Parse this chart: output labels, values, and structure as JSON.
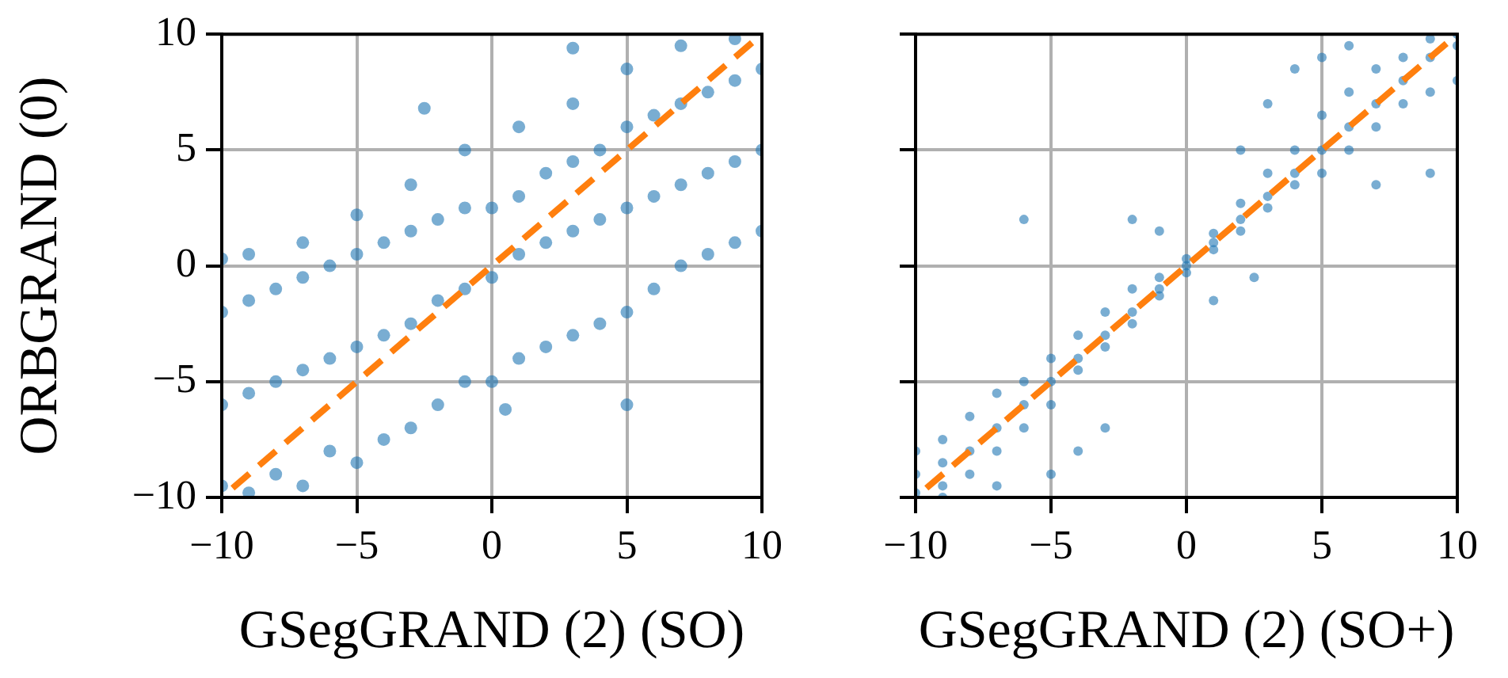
{
  "chart_data": [
    {
      "type": "scatter",
      "xlabel": "GSegGRAND (2) (SO)",
      "ylabel": "ORBGRAND (0)",
      "xlim": [
        -10,
        10
      ],
      "ylim": [
        -10,
        10
      ],
      "xticks": [
        -10,
        -5,
        0,
        5,
        10
      ],
      "yticks": [
        -10,
        -5,
        0,
        5,
        10
      ],
      "grid": true,
      "series": [
        {
          "color": "#1f77b4",
          "marker": "circle",
          "x": [
            -10,
            -10,
            -10,
            -10,
            -9,
            -9,
            -9,
            -9,
            -8,
            -8,
            -8,
            -7,
            -7,
            -7,
            -7,
            -6,
            -6,
            -6,
            -5,
            -5,
            -5,
            -5,
            -4,
            -4,
            -4,
            -3,
            -3,
            -3,
            -3,
            -2,
            -2,
            -2,
            -1,
            -1,
            -1,
            -1,
            0,
            0,
            0,
            1,
            1,
            1,
            1,
            2,
            2,
            2,
            3,
            3,
            3,
            3,
            4,
            4,
            4,
            5,
            5,
            5,
            5,
            6,
            6,
            6,
            7,
            7,
            7,
            7,
            8,
            8,
            8,
            9,
            9,
            9,
            9,
            10,
            10,
            10,
            -2.5,
            3,
            5,
            0.5
          ],
          "values": [
            -9.5,
            -6,
            -2,
            0.3,
            -9.8,
            -5.5,
            -1.5,
            0.5,
            -9,
            -5,
            -1,
            -9.5,
            -4.5,
            -0.5,
            1,
            -8,
            -4,
            0,
            -8.5,
            -3.5,
            0.5,
            2.2,
            -7.5,
            -3,
            1,
            -7,
            -2.5,
            1.5,
            3.5,
            -6,
            -1.5,
            2,
            -5,
            -1,
            2.5,
            5,
            -5,
            -0.5,
            2.5,
            -4,
            0.5,
            3,
            6,
            -3.5,
            1,
            4,
            -3,
            1.5,
            4.5,
            7,
            -2.5,
            2,
            5,
            -2,
            2.5,
            6,
            8.5,
            -1,
            3,
            6.5,
            0,
            3.5,
            7,
            9.5,
            0.5,
            4,
            7.5,
            1,
            4.5,
            8,
            9.8,
            1.5,
            5,
            8.5,
            6.8,
            9.4,
            -6,
            -6.2
          ]
        },
        {
          "type": "line",
          "color": "#ff7f0e",
          "line_style": "dashed",
          "x": [
            -9.6,
            10
          ],
          "values": [
            -9.6,
            10
          ]
        }
      ]
    },
    {
      "type": "scatter",
      "xlabel": "GSegGRAND (2) (SO+)",
      "xlim": [
        -10,
        10
      ],
      "ylim": [
        -10,
        10
      ],
      "xticks": [
        -10,
        -5,
        0,
        5,
        10
      ],
      "yticks": [
        -10,
        -5,
        0,
        5,
        10
      ],
      "grid": true,
      "tick_labels": "x",
      "series": [
        {
          "color": "#1f77b4",
          "marker": "circle",
          "x": [
            -10,
            -10,
            -10,
            -9,
            -9,
            -9,
            -9,
            -8,
            -8,
            -8,
            -7,
            -7,
            -7,
            -7,
            -6,
            -6,
            -6,
            -5,
            -5,
            -5,
            -5,
            -4,
            -4,
            -4,
            -4,
            -3,
            -3,
            -3,
            -3,
            -2,
            -2,
            -2,
            -2,
            -1,
            -1,
            -1,
            -1,
            0,
            0,
            0,
            1,
            1,
            1,
            1,
            2,
            2,
            2,
            2,
            3,
            3,
            3,
            3,
            4,
            4,
            4,
            4,
            5,
            5,
            5,
            5,
            6,
            6,
            6,
            6,
            7,
            7,
            7,
            7,
            8,
            8,
            8,
            9,
            9,
            9,
            9,
            10,
            10,
            10,
            -6,
            2.5
          ],
          "values": [
            -9.8,
            -9,
            -8,
            -9.5,
            -8.5,
            -7.5,
            -10,
            -9,
            -8,
            -6.5,
            -8,
            -7,
            -5.5,
            -9.5,
            -7,
            -6,
            -5,
            -6,
            -5,
            -4,
            -9,
            -4.5,
            -4,
            -3,
            -8,
            -3.5,
            -3,
            -2,
            -7,
            -2.5,
            -2,
            -1,
            2,
            -1.3,
            -1,
            -0.5,
            1.5,
            -0.3,
            0,
            0.3,
            0.7,
            1,
            1.4,
            -1.5,
            1.5,
            2,
            2.7,
            5,
            2.5,
            3,
            4,
            7,
            3.5,
            4,
            5,
            8.5,
            4,
            5,
            6.5,
            9,
            5,
            6,
            7.5,
            9.5,
            6,
            7,
            8.5,
            3.5,
            7,
            8,
            9,
            7.5,
            9,
            9.8,
            4,
            8,
            9.5,
            10,
            2,
            -0.5
          ]
        },
        {
          "type": "line",
          "color": "#ff7f0e",
          "line_style": "dashed",
          "x": [
            -9.6,
            10
          ],
          "values": [
            -9.6,
            10
          ]
        }
      ]
    }
  ]
}
